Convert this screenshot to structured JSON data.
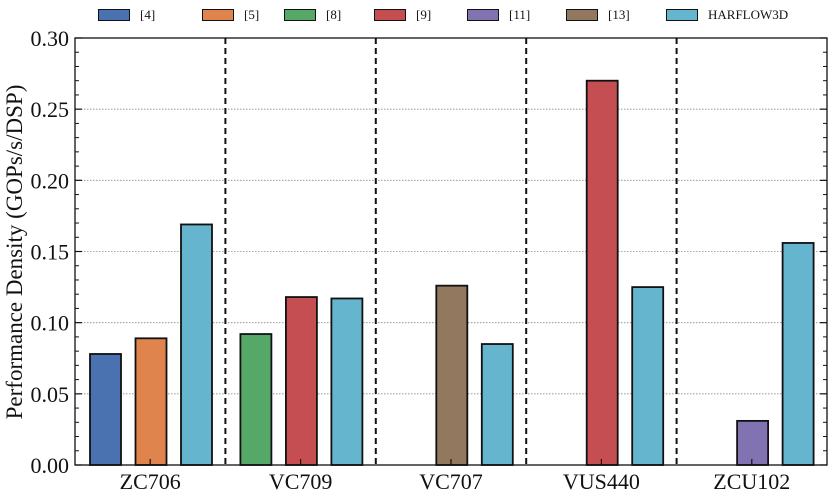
{
  "chart_data": {
    "type": "bar",
    "title": "",
    "xlabel": "",
    "ylabel": "Performance Density (GOPs/s/DSP)",
    "ylim": [
      0,
      0.3
    ],
    "yticks": [
      "0.00",
      "0.05",
      "0.10",
      "0.15",
      "0.20",
      "0.25",
      "0.30"
    ],
    "grid": "horizontal dotted",
    "legend_position": "top",
    "categories": [
      "ZC706",
      "VC709",
      "VC707",
      "VUS440",
      "ZCU102"
    ],
    "series": [
      {
        "name": "[4]",
        "color": "#4a72b0"
      },
      {
        "name": "[5]",
        "color": "#e0844e"
      },
      {
        "name": "[8]",
        "color": "#55a868"
      },
      {
        "name": "[9]",
        "color": "#c44e52"
      },
      {
        "name": "[11]",
        "color": "#8172b2"
      },
      {
        "name": "[13]",
        "color": "#937860"
      },
      {
        "name": "HARFLOW3D",
        "color": "#64b5cd"
      }
    ],
    "groups": [
      {
        "category": "ZC706",
        "bars": [
          {
            "series": "[4]",
            "value": 0.078
          },
          {
            "series": "[5]",
            "value": 0.089
          },
          {
            "series": "HARFLOW3D",
            "value": 0.169
          }
        ]
      },
      {
        "category": "VC709",
        "bars": [
          {
            "series": "[8]",
            "value": 0.092
          },
          {
            "series": "[9]",
            "value": 0.118
          },
          {
            "series": "HARFLOW3D",
            "value": 0.117
          }
        ]
      },
      {
        "category": "VC707",
        "bars": [
          {
            "series": "[13]",
            "value": 0.126
          },
          {
            "series": "HARFLOW3D",
            "value": 0.085
          }
        ]
      },
      {
        "category": "VUS440",
        "bars": [
          {
            "series": "[9]",
            "value": 0.27
          },
          {
            "series": "HARFLOW3D",
            "value": 0.125
          }
        ]
      },
      {
        "category": "ZCU102",
        "bars": [
          {
            "series": "[11]",
            "value": 0.031
          },
          {
            "series": "HARFLOW3D",
            "value": 0.156
          }
        ]
      }
    ]
  }
}
